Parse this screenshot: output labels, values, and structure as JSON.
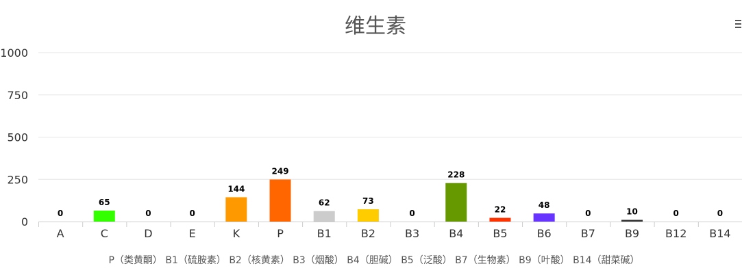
{
  "chart_data": {
    "type": "bar",
    "title": "维生素",
    "categories": [
      "A",
      "C",
      "D",
      "E",
      "K",
      "P",
      "B1",
      "B2",
      "B3",
      "B4",
      "B5",
      "B6",
      "B7",
      "B9",
      "B12",
      "B14"
    ],
    "values": [
      0,
      65,
      0,
      0,
      144,
      249,
      62,
      73,
      0,
      228,
      22,
      48,
      0,
      10,
      0,
      0
    ],
    "colors": [
      "#f04c4c",
      "#33ff00",
      "#7cb5ec",
      "#7cb5ec",
      "#ff9900",
      "#ff6600",
      "#cccccc",
      "#ffcc00",
      "#7cb5ec",
      "#669900",
      "#ff3300",
      "#6633ff",
      "#7cb5ec",
      "#333333",
      "#7cb5ec",
      "#7cb5ec"
    ],
    "yticks": [
      "0",
      "250",
      "500",
      "750",
      "1000"
    ],
    "ylim": [
      0,
      1000
    ],
    "grid": true,
    "note": "P（类黄酮） B1（硫胺素） B2（核黄素） B3（烟酸） B4（胆碱） B5（泛酸） B7（生物素） B9（叶酸） B14（甜菜碱）"
  },
  "icons": {
    "menu": "hamburger-menu-icon"
  }
}
